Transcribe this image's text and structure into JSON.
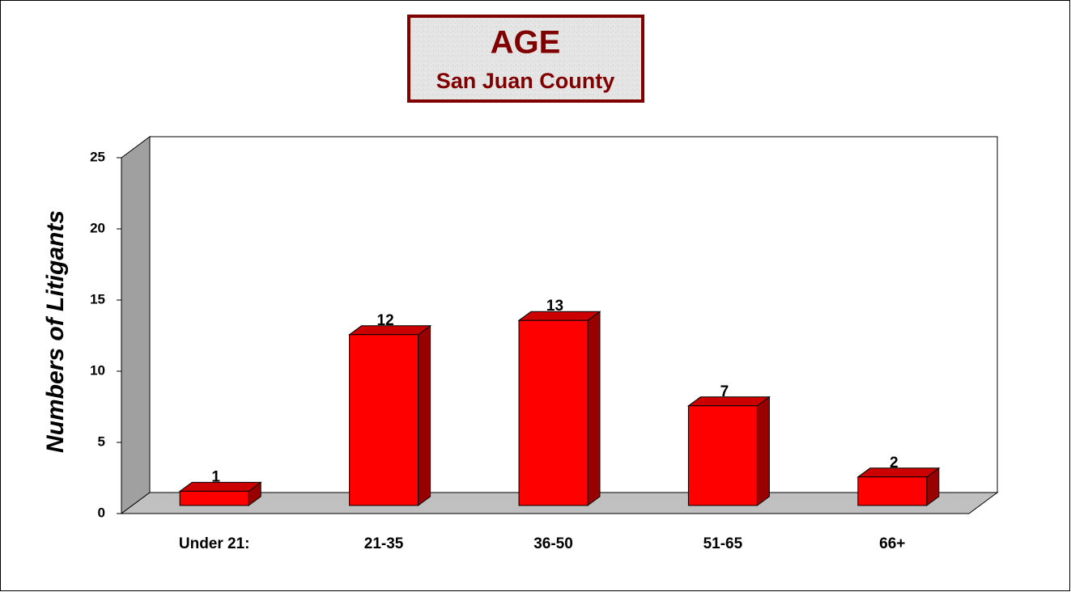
{
  "chart_data": {
    "type": "bar3d",
    "title": "AGE",
    "subtitle": "San Juan County",
    "y_label": "Numbers of Litigants",
    "categories": [
      "Under 21:",
      "21-35",
      "36-50",
      "51-65",
      "66+"
    ],
    "values": [
      1,
      12,
      13,
      7,
      2
    ],
    "color": "#ff0000",
    "ylim": [
      0,
      25
    ],
    "yticks": [
      0,
      5,
      10,
      15,
      20,
      25
    ]
  }
}
